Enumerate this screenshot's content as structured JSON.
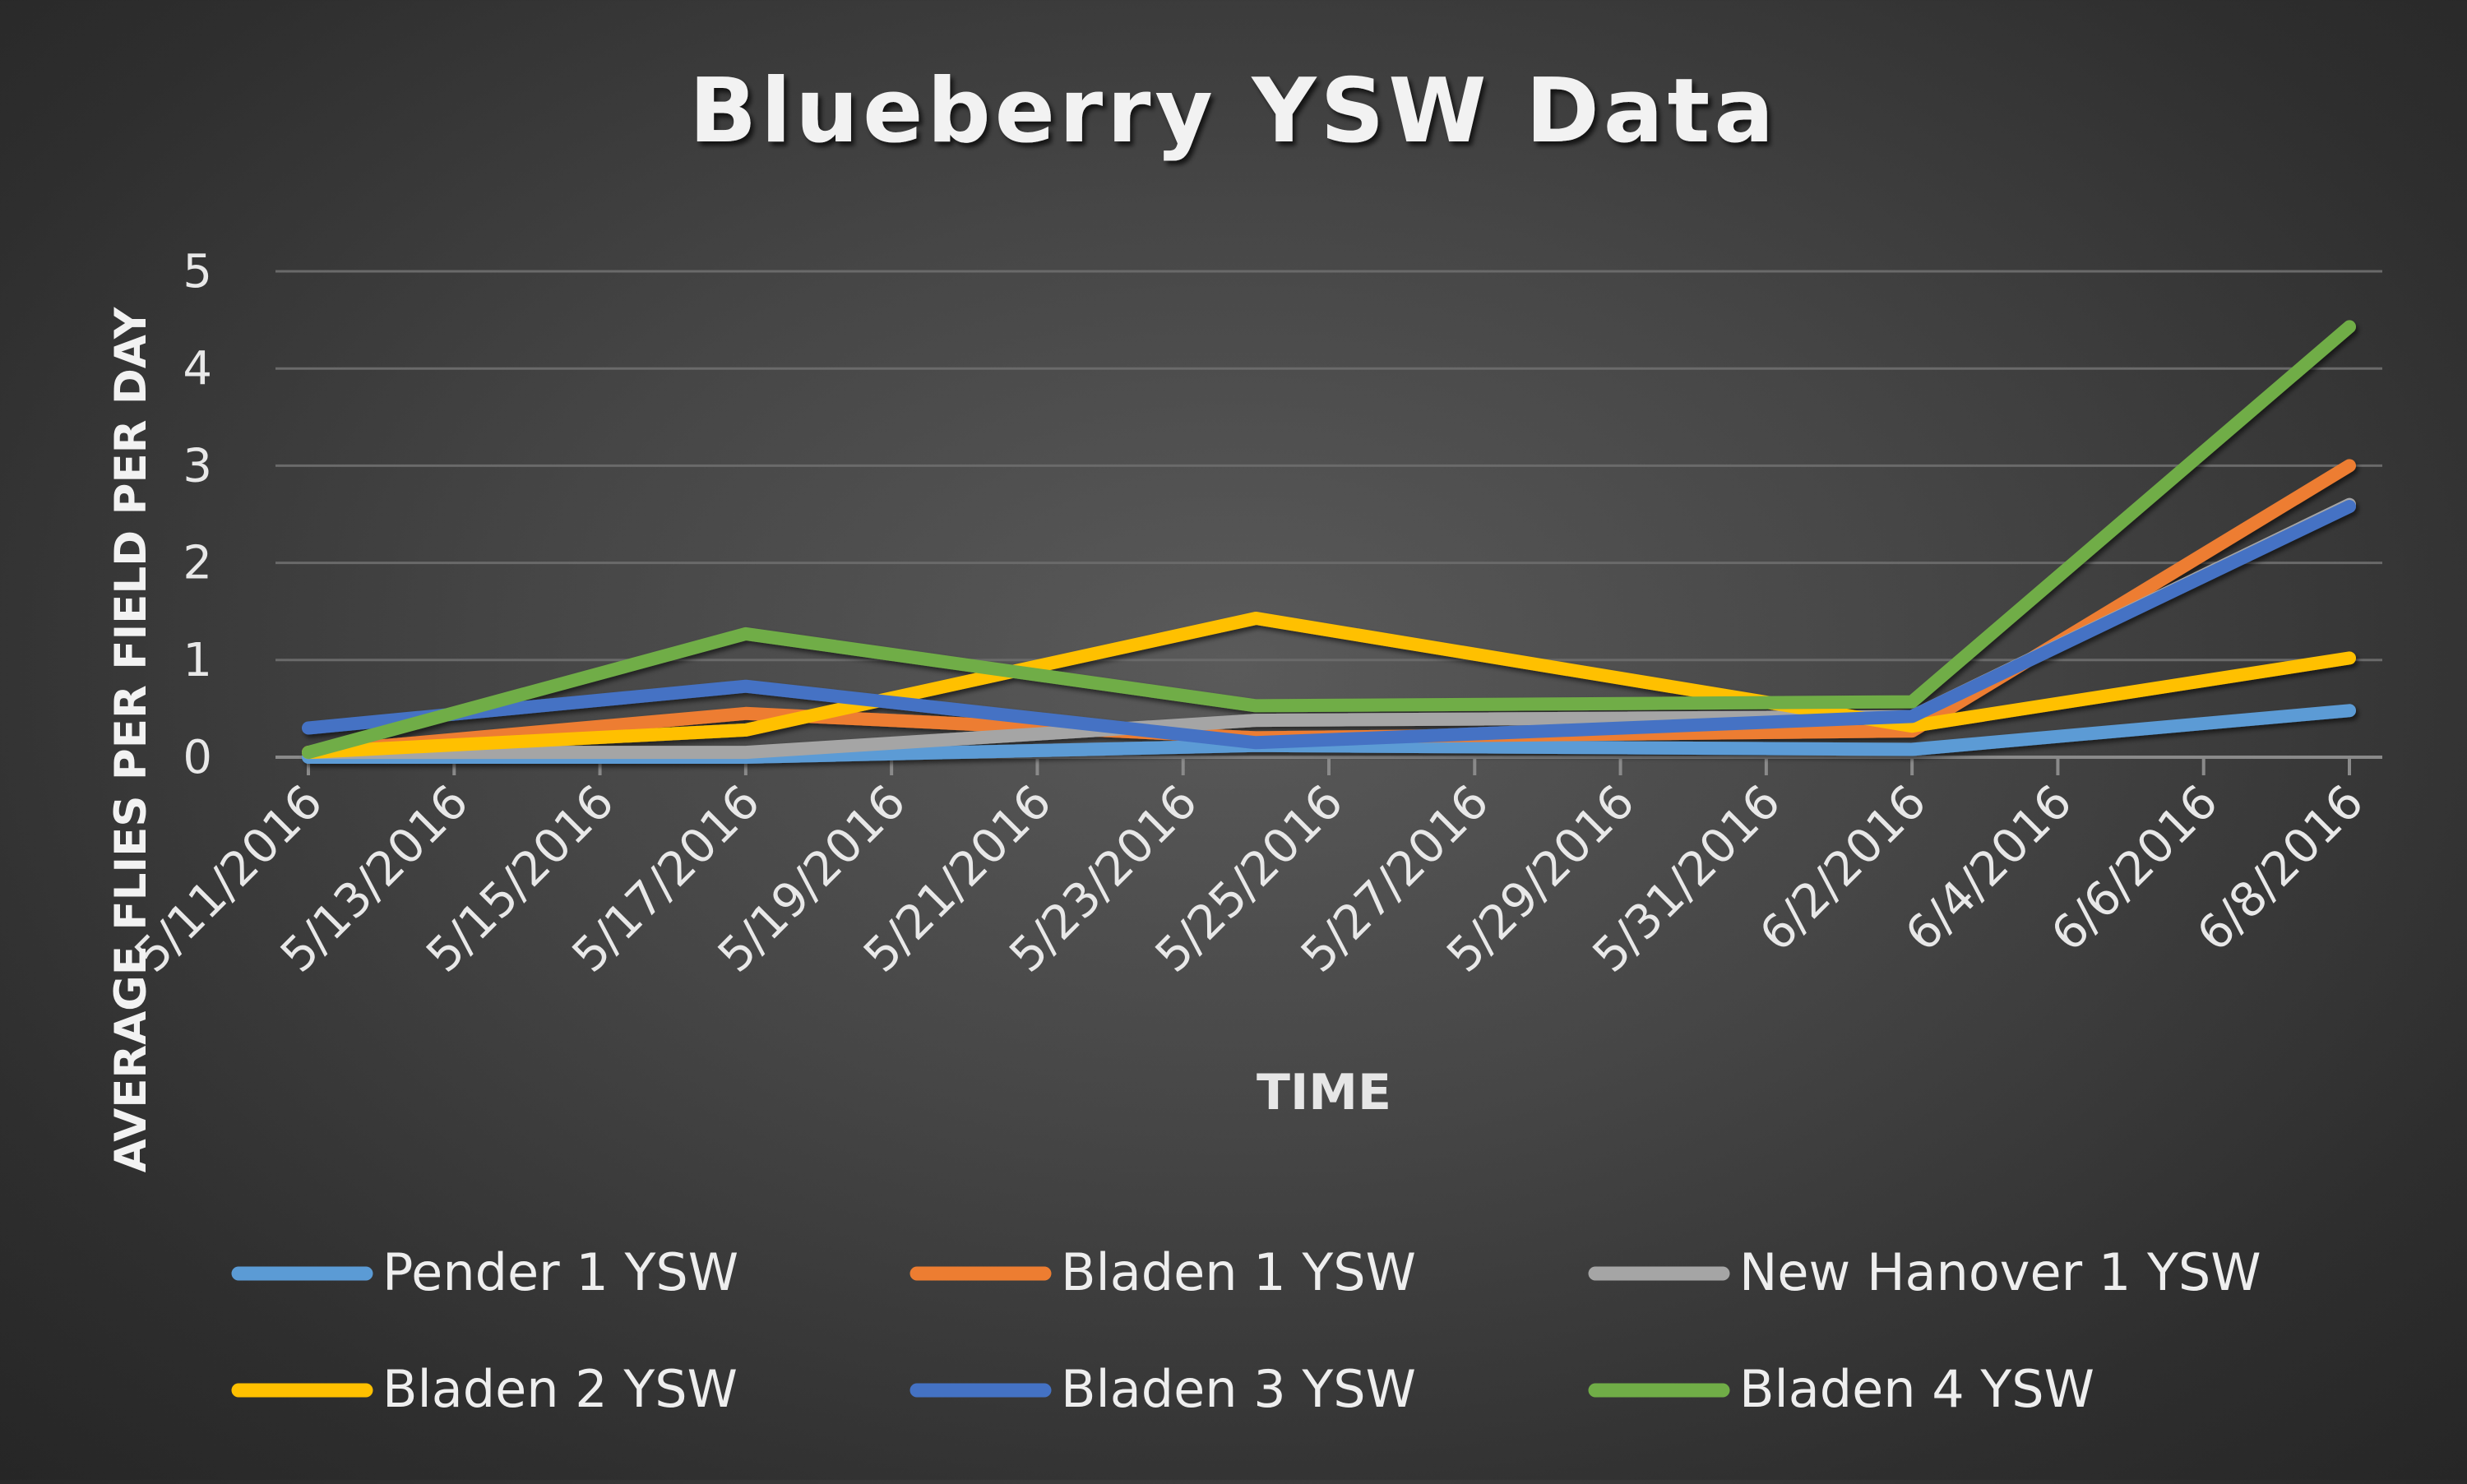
{
  "chart_data": {
    "type": "line",
    "title": "Blueberry YSW Data",
    "xlabel": "TIME",
    "ylabel": "AVERAGE FLIES PER FIELD PER DAY",
    "ylim": [
      0,
      5
    ],
    "yticks": [
      "0",
      "1",
      "2",
      "3",
      "4",
      "5"
    ],
    "xticks": [
      "5/11/2016",
      "5/13/2016",
      "5/15/2016",
      "5/17/2016",
      "5/19/2016",
      "5/21/2016",
      "5/23/2016",
      "5/25/2016",
      "5/27/2016",
      "5/29/2016",
      "5/31/2016",
      "6/2/2016",
      "6/4/2016",
      "6/6/2016",
      "6/8/2016"
    ],
    "x": [
      "5/11/2016",
      "5/17/2016",
      "5/24/2016",
      "6/2/2016",
      "6/8/2016"
    ],
    "grid": true,
    "legend_position": "bottom",
    "series": [
      {
        "name": "Pender 1 YSW",
        "color": "#5b9bd5",
        "values": [
          0.0,
          0.0,
          0.12,
          0.08,
          0.48
        ]
      },
      {
        "name": "Bladen 1 YSW",
        "color": "#ed7d31",
        "values": [
          0.05,
          0.45,
          0.2,
          0.27,
          3.0
        ]
      },
      {
        "name": "New Hanover 1 YSW",
        "color": "#a5a5a5",
        "values": [
          0.05,
          0.05,
          0.38,
          0.42,
          2.6
        ]
      },
      {
        "name": "Bladen 2 YSW",
        "color": "#ffc000",
        "values": [
          0.05,
          0.28,
          1.43,
          0.32,
          1.02
        ]
      },
      {
        "name": "Bladen 3 YSW",
        "color": "#4472c4",
        "values": [
          0.3,
          0.73,
          0.15,
          0.42,
          2.58
        ]
      },
      {
        "name": "Bladen 4 YSW",
        "color": "#70ad47",
        "values": [
          0.05,
          1.27,
          0.53,
          0.57,
          4.43
        ]
      }
    ]
  }
}
